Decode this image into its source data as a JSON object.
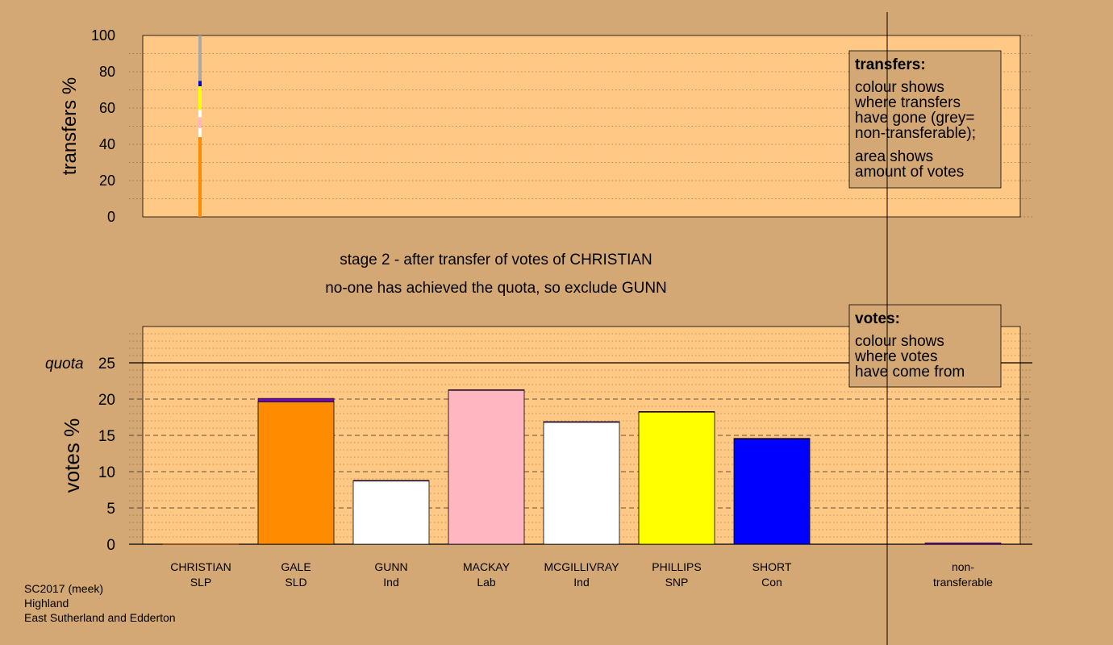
{
  "chart_data": {
    "type": "bar",
    "captions": {
      "stage": "stage 2 - after transfer of votes of CHRISTIAN",
      "status": "no-one has achieved the quota, so exclude GUNN"
    },
    "transfers": {
      "ylabel": "transfers %",
      "ylim": [
        0,
        100
      ],
      "yticks": [
        0,
        20,
        40,
        60,
        80,
        100
      ],
      "legend": {
        "title": "transfers:",
        "lines": [
          "colour shows",
          "where transfers",
          "have gone (grey=",
          "non-transferable);"
        ],
        "lines2": [
          "area shows",
          "amount of votes"
        ]
      },
      "stack": [
        {
          "to": "GALE",
          "color": "#ff8c00",
          "value": 44
        },
        {
          "to": "MCGILLIVRAY",
          "color": "#ffffff",
          "value": 5
        },
        {
          "to": "MACKAY",
          "color": "#ffb6c1",
          "value": 6
        },
        {
          "to": "MCGILLIVRAY",
          "color": "#ffffff",
          "value": 4
        },
        {
          "to": "PHILLIPS",
          "color": "#ffff00",
          "value": 6
        },
        {
          "to": "PHILLIPS",
          "color": "#ffff00",
          "value": 7
        },
        {
          "to": "SHORT",
          "color": "#0000cd",
          "value": 3
        },
        {
          "to": "non-transferable",
          "color": "#a9a9a9",
          "value": 25
        }
      ]
    },
    "votes": {
      "ylabel": "votes %",
      "ylim": [
        0,
        25
      ],
      "yticks": [
        0,
        5,
        10,
        15,
        20,
        25
      ],
      "quota": 25,
      "quota_label": "quota",
      "legend": {
        "title": "votes:",
        "lines": [
          "colour shows",
          "where votes",
          "have come from"
        ]
      },
      "candidates": [
        {
          "name": "CHRISTIAN",
          "party": "SLP",
          "base": 0,
          "transfer": 0,
          "color": "#8b4513"
        },
        {
          "name": "GALE",
          "party": "SLD",
          "base": 19.6,
          "transfer": 0.5,
          "color": "#ff8c00"
        },
        {
          "name": "GUNN",
          "party": "Ind",
          "base": 8.7,
          "transfer": 0.1,
          "color": "#ffffff"
        },
        {
          "name": "MACKAY",
          "party": "Lab",
          "base": 21.2,
          "transfer": 0.1,
          "color": "#ffb6c1"
        },
        {
          "name": "MCGILLIVRAY",
          "party": "Ind",
          "base": 16.8,
          "transfer": 0.1,
          "color": "#ffffff"
        },
        {
          "name": "PHILLIPS",
          "party": "SNP",
          "base": 18.2,
          "transfer": 0.1,
          "color": "#ffff00"
        },
        {
          "name": "SHORT",
          "party": "Con",
          "base": 14.5,
          "transfer": 0.1,
          "color": "#0000ff"
        }
      ],
      "non_transferable": {
        "label_line1": "non-",
        "label_line2": "transferable",
        "value": 0.2
      },
      "transfer_color": "#6a0dad"
    }
  },
  "footer": {
    "line1": "SC2017 (meek)",
    "line2": "Highland",
    "line3": "East Sutherland and Edderton"
  },
  "colors": {
    "background": "#d4a874",
    "plot_area": "#ffc985",
    "legend_box": "#d4a874"
  }
}
